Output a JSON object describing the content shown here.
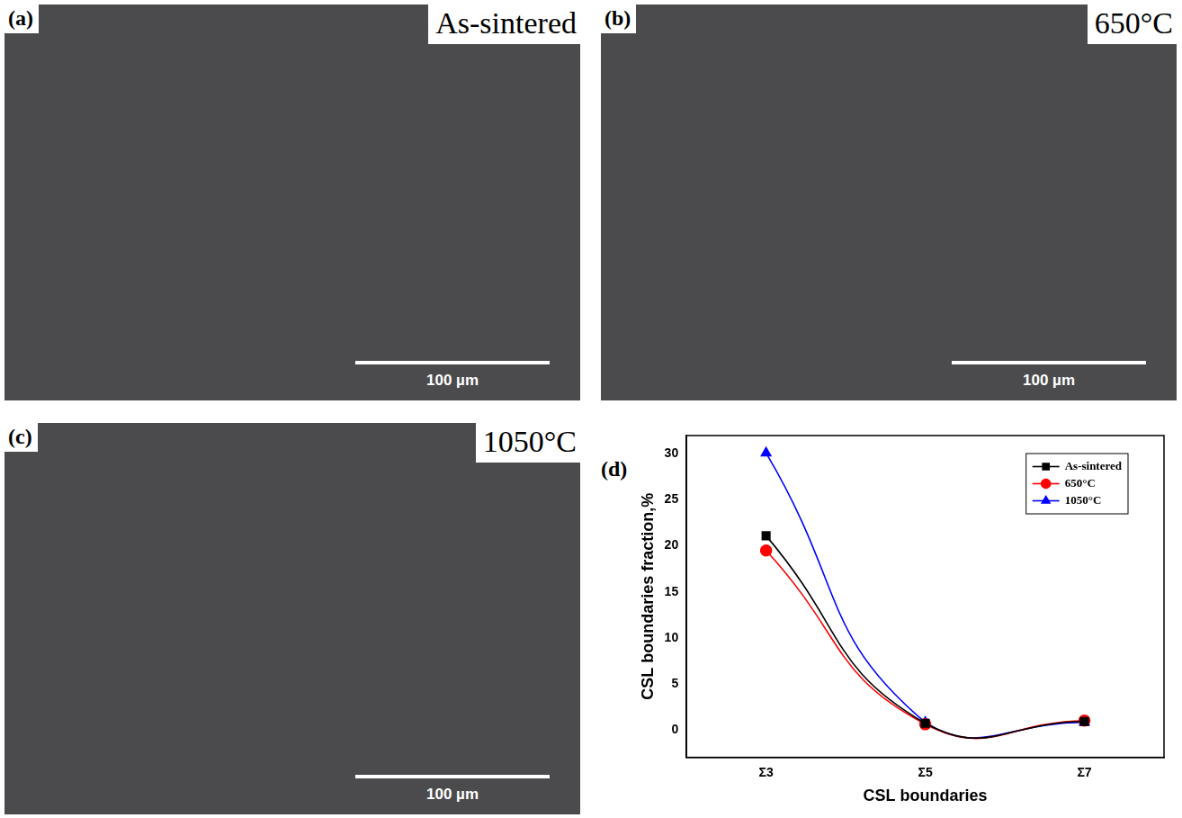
{
  "panels": [
    {
      "letter": "(a)",
      "label": "As-sintered",
      "scale_bar": "100 µm"
    },
    {
      "letter": "(b)",
      "label": "650°C",
      "scale_bar": "100 µm"
    },
    {
      "letter": "(c)",
      "label": "1050°C",
      "scale_bar": "100 µm"
    }
  ],
  "chart_panel": {
    "letter": "(d)"
  },
  "chart_data": {
    "type": "line",
    "x_label": "CSL boundaries",
    "y_label": "CSL boundaries fraction,%",
    "categories": [
      "Σ3",
      "Σ5",
      "Σ7"
    ],
    "series": [
      {
        "name": "As-sintered",
        "color": "#000000",
        "marker": "square",
        "line_style": "smooth",
        "values": [
          21.1,
          0.7,
          0.9
        ]
      },
      {
        "name": "650°C",
        "color": "#ff0000",
        "marker": "circle",
        "line_style": "smooth",
        "values": [
          19.5,
          0.6,
          1.0
        ]
      },
      {
        "name": "1050°C",
        "color": "#0000ff",
        "marker": "triangle",
        "line_style": "smooth",
        "values": [
          30.1,
          0.8,
          0.8
        ]
      }
    ],
    "ylim": [
      -3,
      32
    ],
    "yticks": [
      0,
      5,
      10,
      15,
      20,
      25,
      30
    ],
    "grid": false,
    "legend": "top-right"
  }
}
